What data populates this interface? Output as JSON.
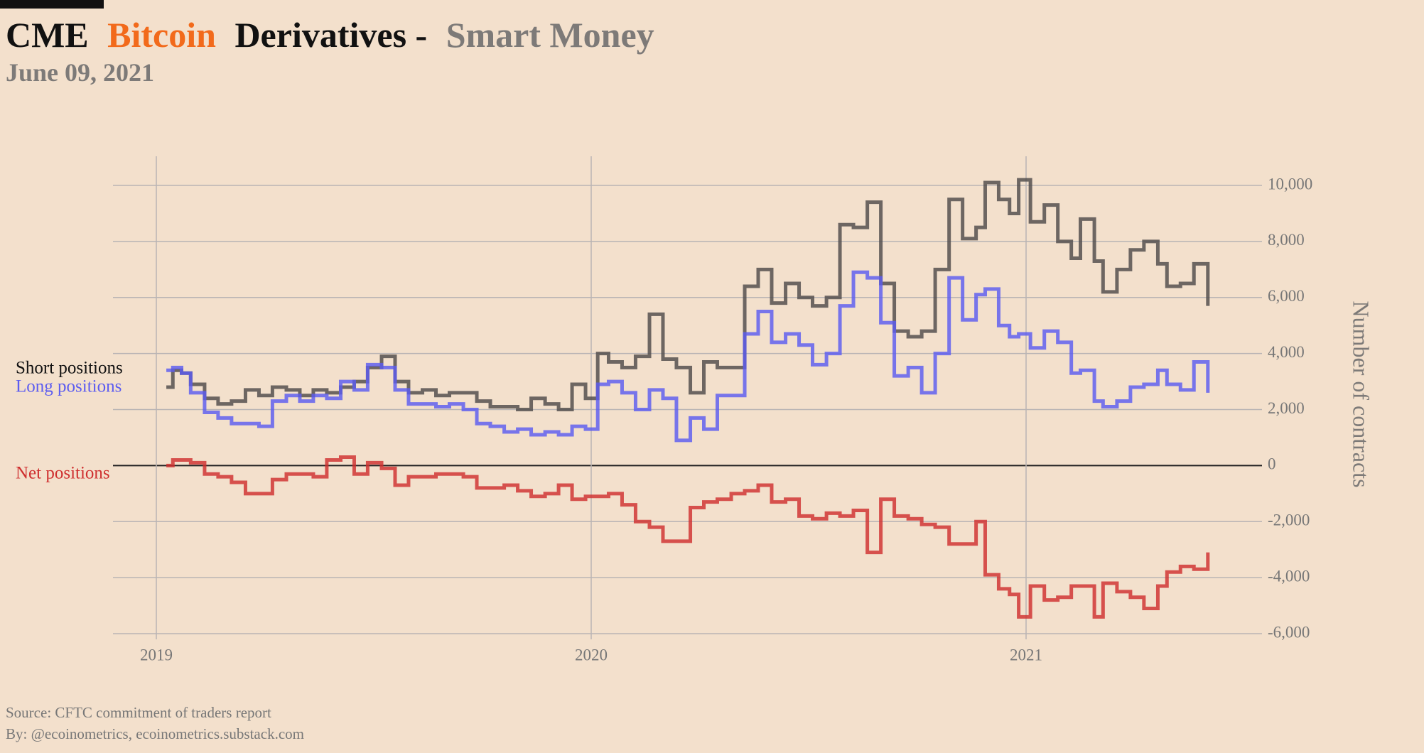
{
  "chart_data": {
    "type": "line",
    "title": [
      "CME",
      "Bitcoin",
      "Derivatives -",
      "Smart Money"
    ],
    "subtitle": "June 09, 2021",
    "y_label": "Number of contracts",
    "source": [
      "Source: CFTC commitment of traders report",
      "By: @ecoinometrics, ecoinometrics.substack.com"
    ],
    "xlim": [
      2018.9,
      2021.53
    ],
    "xticks": [
      2019,
      2020,
      2021
    ],
    "ylim": [
      -6000,
      10000
    ],
    "yticks": [
      {
        "value": 10000,
        "label": "10,000"
      },
      {
        "value": 8000,
        "label": "8,000"
      },
      {
        "value": 6000,
        "label": "6,000"
      },
      {
        "value": 4000,
        "label": "4,000"
      },
      {
        "value": 2000,
        "label": "2,000"
      },
      0,
      {
        "value": -2000,
        "label": "-2,000"
      },
      {
        "value": -4000,
        "label": "-4,000"
      },
      {
        "value": -6000,
        "label": "-6,000"
      }
    ],
    "grid": true,
    "step": true,
    "x": [
      2019.023,
      2019.038,
      2019.058,
      2019.079,
      2019.111,
      2019.142,
      2019.173,
      2019.205,
      2019.236,
      2019.267,
      2019.299,
      2019.33,
      2019.361,
      2019.392,
      2019.424,
      2019.455,
      2019.486,
      2019.518,
      2019.549,
      2019.58,
      2019.612,
      2019.643,
      2019.674,
      2019.706,
      2019.737,
      2019.768,
      2019.8,
      2019.831,
      2019.862,
      2019.894,
      2019.925,
      2019.956,
      2019.987,
      2020.015,
      2020.04,
      2020.071,
      2020.102,
      2020.134,
      2020.165,
      2020.196,
      2020.228,
      2020.259,
      2020.29,
      2020.322,
      2020.353,
      2020.384,
      2020.415,
      2020.447,
      2020.478,
      2020.509,
      2020.541,
      2020.572,
      2020.603,
      2020.635,
      2020.666,
      2020.697,
      2020.729,
      2020.76,
      2020.791,
      2020.823,
      2020.854,
      2020.885,
      2020.906,
      2020.937,
      2020.962,
      2020.983,
      2021.01,
      2021.042,
      2021.073,
      2021.104,
      2021.125,
      2021.157,
      2021.177,
      2021.209,
      2021.24,
      2021.271,
      2021.303,
      2021.324,
      2021.355,
      2021.386,
      2021.418
    ],
    "series": [
      {
        "name": "Short positions",
        "color": "#4f4b4b",
        "values": [
          2800,
          3400,
          3300,
          2900,
          2400,
          2200,
          2300,
          2700,
          2500,
          2800,
          2700,
          2500,
          2700,
          2600,
          2800,
          3000,
          3500,
          3900,
          3000,
          2600,
          2700,
          2500,
          2600,
          2600,
          2300,
          2100,
          2100,
          2000,
          2400,
          2200,
          2000,
          2900,
          2400,
          4000,
          3700,
          3500,
          3900,
          5400,
          3800,
          3500,
          2600,
          3700,
          3500,
          3500,
          6400,
          7000,
          5800,
          6500,
          6000,
          5700,
          6000,
          8600,
          8500,
          9400,
          6500,
          4800,
          4600,
          4800,
          7000,
          9500,
          8100,
          8500,
          10100,
          9500,
          9000,
          10200,
          8700,
          9300,
          8000,
          7400,
          8800,
          7300,
          6200,
          7000,
          7700,
          8000,
          7200,
          6400,
          6500,
          7200,
          5700
        ]
      },
      {
        "name": "Long positions",
        "color": "#5c5cf0",
        "values": [
          3400,
          3500,
          3300,
          2600,
          1900,
          1700,
          1500,
          1500,
          1400,
          2300,
          2500,
          2300,
          2500,
          2400,
          3000,
          2700,
          3600,
          3500,
          2700,
          2200,
          2200,
          2100,
          2200,
          2000,
          1500,
          1400,
          1200,
          1300,
          1100,
          1200,
          1100,
          1400,
          1300,
          2900,
          3000,
          2600,
          2000,
          2700,
          2400,
          900,
          1700,
          1300,
          2500,
          2500,
          4700,
          5500,
          4400,
          4700,
          4300,
          3600,
          4000,
          5700,
          6900,
          6700,
          5100,
          3200,
          3500,
          2600,
          4000,
          6700,
          5200,
          6100,
          6300,
          5000,
          4600,
          4700,
          4200,
          4800,
          4400,
          3300,
          3400,
          2300,
          2100,
          2300,
          2800,
          2900,
          3400,
          2900,
          2700,
          3700,
          2600
        ]
      },
      {
        "name": "Net positions",
        "color": "#cf2f2f",
        "values": [
          0,
          200,
          200,
          100,
          -300,
          -400,
          -600,
          -1000,
          -1000,
          -500,
          -300,
          -300,
          -400,
          200,
          300,
          -300,
          100,
          -100,
          -700,
          -400,
          -400,
          -300,
          -300,
          -400,
          -800,
          -800,
          -700,
          -900,
          -1100,
          -1000,
          -700,
          -1200,
          -1100,
          -1100,
          -1000,
          -1400,
          -2000,
          -2200,
          -2700,
          -2700,
          -1500,
          -1300,
          -1200,
          -1000,
          -900,
          -700,
          -1300,
          -1200,
          -1800,
          -1900,
          -1700,
          -1800,
          -1600,
          -3100,
          -1200,
          -1800,
          -1900,
          -2100,
          -2200,
          -2800,
          -2800,
          -2000,
          -3900,
          -4400,
          -4600,
          -5400,
          -4300,
          -4800,
          -4700,
          -4300,
          -4300,
          -5400,
          -4200,
          -4500,
          -4700,
          -5100,
          -4300,
          -3800,
          -3600,
          -3700,
          -3100
        ]
      }
    ]
  }
}
